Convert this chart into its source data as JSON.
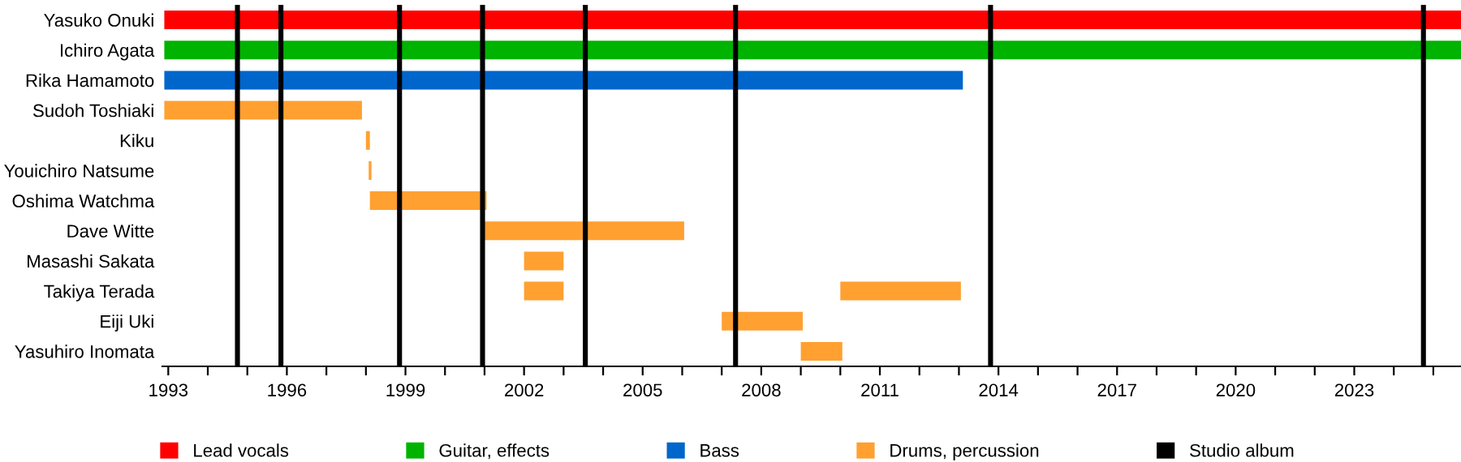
{
  "chart_data": {
    "type": "bar",
    "orientation": "horizontal",
    "categories": [
      "Yasuko Onuki",
      "Ichiro Agata",
      "Rika Hamamoto",
      "Sudoh Toshiaki",
      "Kiku",
      "Youichiro Natsume",
      "Oshima Watchma",
      "Dave Witte",
      "Masashi Sakata",
      "Takiya Terada",
      "Eiji Uki",
      "Yasuhiro Inomata"
    ],
    "series": [
      {
        "name": "Lead vocals",
        "color": "#ff0000",
        "base": [
          1992.9,
          null,
          null,
          null,
          null,
          null,
          null,
          null,
          null,
          null,
          null,
          null
        ],
        "values": [
          32.8,
          null,
          null,
          null,
          null,
          null,
          null,
          null,
          null,
          null,
          null,
          null
        ]
      },
      {
        "name": "Guitar, effects",
        "color": "#00b300",
        "base": [
          null,
          1992.9,
          null,
          null,
          null,
          null,
          null,
          null,
          null,
          null,
          null,
          null
        ],
        "values": [
          null,
          32.8,
          null,
          null,
          null,
          null,
          null,
          null,
          null,
          null,
          null,
          null
        ]
      },
      {
        "name": "Bass",
        "color": "#0066cc",
        "base": [
          null,
          null,
          1992.9,
          null,
          null,
          null,
          null,
          null,
          null,
          null,
          null,
          null
        ],
        "values": [
          null,
          null,
          20.2,
          null,
          null,
          null,
          null,
          null,
          null,
          null,
          null,
          null
        ]
      },
      {
        "name": "Drums, percussion",
        "color": "#ffa031",
        "base": [
          null,
          null,
          null,
          1992.9,
          1998.0,
          1998.07,
          1998.1,
          2001.0,
          2002.0,
          2002.0,
          2007.0,
          2009.0
        ],
        "values": [
          null,
          null,
          null,
          5.0,
          0.1,
          0.07,
          2.95,
          5.05,
          1.0,
          1.0,
          2.05,
          1.05
        ]
      },
      {
        "color": "#ffa031",
        "base": [
          null,
          null,
          null,
          null,
          null,
          null,
          null,
          null,
          null,
          2010.0,
          null,
          null
        ],
        "values": [
          null,
          null,
          null,
          null,
          null,
          null,
          null,
          null,
          null,
          3.05,
          null,
          null
        ]
      }
    ],
    "ref_lines": [
      {
        "axis": "x",
        "value": 1994.75,
        "label": "Studio album",
        "color": "#000000"
      },
      {
        "axis": "x",
        "value": 1995.85,
        "label": null,
        "color": "#000000"
      },
      {
        "axis": "x",
        "value": 1998.85,
        "label": null,
        "color": "#000000"
      },
      {
        "axis": "x",
        "value": 2000.95,
        "label": null,
        "color": "#000000"
      },
      {
        "axis": "x",
        "value": 2003.55,
        "label": null,
        "color": "#000000"
      },
      {
        "axis": "x",
        "value": 2007.35,
        "label": null,
        "color": "#000000"
      },
      {
        "axis": "x",
        "value": 2013.8,
        "label": null,
        "color": "#000000"
      },
      {
        "axis": "x",
        "value": 2024.75,
        "label": null,
        "color": "#000000"
      }
    ],
    "xlim": [
      1992.85,
      2025.7
    ],
    "xticks": [
      1993,
      {
        "value": 1994,
        "label": null
      },
      {
        "value": 1995,
        "label": null
      },
      1996,
      {
        "value": 1997,
        "label": null
      },
      {
        "value": 1998,
        "label": null
      },
      1999,
      {
        "value": 2000,
        "label": null
      },
      {
        "value": 2001,
        "label": null
      },
      2002,
      {
        "value": 2003,
        "label": null
      },
      {
        "value": 2004,
        "label": null
      },
      2005,
      {
        "value": 2006,
        "label": null
      },
      {
        "value": 2007,
        "label": null
      },
      2008,
      {
        "value": 2009,
        "label": null
      },
      {
        "value": 2010,
        "label": null
      },
      2011,
      {
        "value": 2012,
        "label": null
      },
      {
        "value": 2013,
        "label": null
      },
      2014,
      {
        "value": 2015,
        "label": null
      },
      {
        "value": 2016,
        "label": null
      },
      2017,
      {
        "value": 2018,
        "label": null
      },
      {
        "value": 2019,
        "label": null
      },
      2020,
      {
        "value": 2021,
        "label": null
      },
      {
        "value": 2022,
        "label": null
      },
      2023,
      {
        "value": 2024,
        "label": null
      },
      {
        "value": 2025,
        "label": null
      }
    ],
    "grid": false,
    "legend": "bottom"
  }
}
